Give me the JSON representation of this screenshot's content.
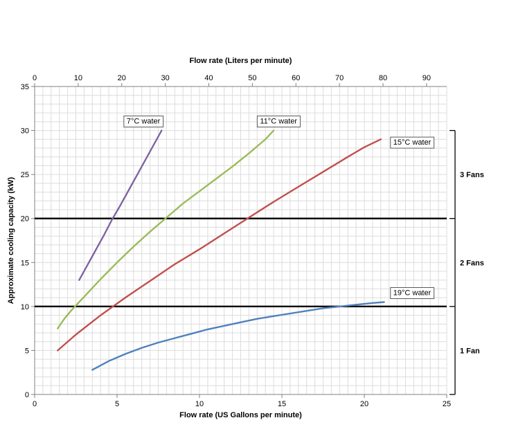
{
  "chart_data": {
    "type": "line",
    "title": "",
    "top_xlabel": "Flow rate (Liters per minute)",
    "bottom_xlabel": "Flow rate (US Gallons per minute)",
    "ylabel": "Approximate cooling capacity (kW)",
    "x_gpm_min": 0,
    "x_gpm_max": 25,
    "x_gpm_ticks": [
      0,
      5,
      10,
      15,
      20,
      25
    ],
    "x_lpm_ticks": [
      0,
      10,
      20,
      30,
      40,
      50,
      60,
      70,
      80,
      90
    ],
    "liters_per_gallon": 3.7854,
    "y_min": 0,
    "y_max": 35,
    "y_ticks": [
      0,
      5,
      10,
      15,
      20,
      25,
      30,
      35
    ],
    "grid": {
      "x_step_gpm": 0.5,
      "y_step_kw": 1,
      "color": "#dcdcdc"
    },
    "reference_lines_kw": [
      10,
      20
    ],
    "series": [
      {
        "id": "7c",
        "name": "7°C water",
        "color": "#8064A2",
        "label_at": {
          "gpm": 6.6,
          "kw": 31.1
        },
        "points": [
          [
            2.7,
            13
          ],
          [
            3.2,
            14.7
          ],
          [
            3.7,
            16.4
          ],
          [
            4.2,
            18.1
          ],
          [
            4.7,
            19.9
          ],
          [
            5.2,
            21.5
          ],
          [
            5.7,
            23.2
          ],
          [
            6.2,
            24.9
          ],
          [
            6.7,
            26.6
          ],
          [
            7.2,
            28.3
          ],
          [
            7.7,
            30
          ]
        ]
      },
      {
        "id": "11c",
        "name": "11°C water",
        "color": "#9BBB59",
        "label_at": {
          "gpm": 14.8,
          "kw": 31.1
        },
        "points": [
          [
            1.4,
            7.5
          ],
          [
            1.8,
            8.6
          ],
          [
            2.2,
            9.5
          ],
          [
            2.6,
            10.3
          ],
          [
            3,
            11.1
          ],
          [
            4,
            13.1
          ],
          [
            5,
            15
          ],
          [
            6,
            16.8
          ],
          [
            7,
            18.5
          ],
          [
            8,
            20.1
          ],
          [
            9,
            21.7
          ],
          [
            10,
            23.1
          ],
          [
            11,
            24.5
          ],
          [
            12,
            25.9
          ],
          [
            13,
            27.4
          ],
          [
            14,
            29
          ],
          [
            14.5,
            30
          ]
        ]
      },
      {
        "id": "15c",
        "name": "15°C water",
        "color": "#C0504D",
        "label_at": {
          "gpm": 22.9,
          "kw": 28.7
        },
        "points": [
          [
            1.4,
            5
          ],
          [
            2.5,
            6.8
          ],
          [
            4,
            9
          ],
          [
            5.5,
            11
          ],
          [
            7,
            12.9
          ],
          [
            8.5,
            14.8
          ],
          [
            10,
            16.5
          ],
          [
            11.5,
            18.3
          ],
          [
            13,
            20.1
          ],
          [
            14.5,
            21.9
          ],
          [
            16,
            23.6
          ],
          [
            17.5,
            25.3
          ],
          [
            19,
            27
          ],
          [
            20,
            28.1
          ],
          [
            21,
            29
          ]
        ]
      },
      {
        "id": "19c",
        "name": "19°C water",
        "color": "#4F81BD",
        "label_at": {
          "gpm": 22.9,
          "kw": 11.6
        },
        "points": [
          [
            3.5,
            2.8
          ],
          [
            4.5,
            3.8
          ],
          [
            5.5,
            4.6
          ],
          [
            6.5,
            5.3
          ],
          [
            7.5,
            5.9
          ],
          [
            8.5,
            6.4
          ],
          [
            9.5,
            6.9
          ],
          [
            10.5,
            7.4
          ],
          [
            11.5,
            7.8
          ],
          [
            12.5,
            8.2
          ],
          [
            13.5,
            8.6
          ],
          [
            14.5,
            8.9
          ],
          [
            15.5,
            9.2
          ],
          [
            16.5,
            9.5
          ],
          [
            17.5,
            9.8
          ],
          [
            18.5,
            10
          ],
          [
            19.5,
            10.2
          ],
          [
            20.5,
            10.4
          ],
          [
            21.2,
            10.5
          ]
        ]
      }
    ],
    "fan_zones": [
      {
        "label": "3 Fans",
        "from_kw": 20,
        "to_kw": 30
      },
      {
        "label": "2 Fans",
        "from_kw": 10,
        "to_kw": 20
      },
      {
        "label": "1 Fan",
        "from_kw": 0,
        "to_kw": 10
      }
    ],
    "legend_position": "inline-labels"
  }
}
